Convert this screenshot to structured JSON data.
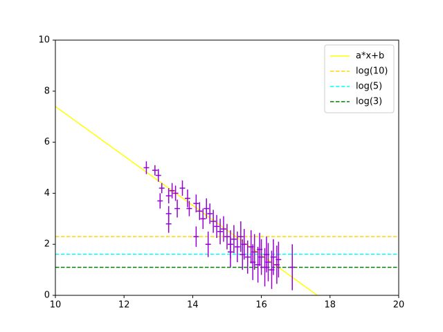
{
  "chart_data": {
    "type": "errorbar",
    "xlim": [
      10,
      20
    ],
    "xticks": [
      10,
      12,
      14,
      16,
      18,
      20
    ],
    "ylim": [
      0,
      10
    ],
    "yticks": [
      0,
      2,
      4,
      6,
      8,
      10
    ],
    "legend": "upper right",
    "points": {
      "color": "#9400d3",
      "xerr": 0.08,
      "x": [
        12.65,
        12.9,
        13.0,
        13.1,
        13.05,
        13.3,
        13.3,
        13.3,
        13.4,
        13.55,
        13.5,
        13.7,
        13.85,
        13.9,
        14.1,
        14.1,
        14.2,
        14.3,
        14.4,
        14.45,
        14.5,
        14.6,
        14.7,
        14.8,
        14.9,
        15.0,
        15.1,
        15.1,
        15.2,
        15.3,
        15.4,
        15.45,
        15.5,
        15.6,
        15.7,
        15.75,
        15.8,
        15.9,
        15.95,
        16.0,
        16.1,
        16.15,
        16.2,
        16.3,
        16.35,
        16.45,
        16.5,
        16.9
      ],
      "values": [
        5.0,
        4.9,
        4.7,
        4.2,
        3.7,
        3.9,
        3.2,
        2.8,
        4.1,
        3.4,
        4.0,
        4.2,
        3.8,
        3.4,
        3.6,
        2.3,
        3.3,
        3.0,
        3.4,
        2.0,
        3.2,
        2.9,
        2.7,
        2.5,
        2.6,
        2.3,
        2.0,
        1.7,
        2.2,
        1.9,
        2.3,
        1.6,
        2.0,
        1.5,
        1.9,
        1.3,
        1.7,
        1.2,
        1.8,
        1.5,
        1.1,
        1.6,
        1.3,
        1.0,
        1.5,
        1.2,
        1.4,
        1.1
      ],
      "yerr": [
        0.25,
        0.2,
        0.25,
        0.2,
        0.3,
        0.3,
        0.3,
        0.35,
        0.3,
        0.35,
        0.3,
        0.3,
        0.35,
        0.3,
        0.35,
        0.4,
        0.35,
        0.4,
        0.4,
        0.5,
        0.4,
        0.45,
        0.45,
        0.5,
        0.5,
        0.5,
        0.55,
        0.6,
        0.55,
        0.6,
        0.6,
        0.6,
        0.6,
        0.65,
        0.65,
        0.7,
        0.7,
        0.7,
        0.65,
        0.7,
        0.75,
        0.7,
        0.75,
        0.75,
        0.7,
        0.75,
        0.7,
        0.9
      ]
    },
    "fit": {
      "name": "a*x+b",
      "color": "#ffff00",
      "x": [
        10,
        17.63
      ],
      "values": [
        7.4,
        0
      ]
    },
    "hlines": [
      {
        "name": "log(10)",
        "color": "#ffd700",
        "value": 2.303
      },
      {
        "name": "log(5)",
        "color": "#00ffff",
        "value": 1.609
      },
      {
        "name": "log(3)",
        "color": "#008000",
        "value": 1.099
      }
    ]
  }
}
